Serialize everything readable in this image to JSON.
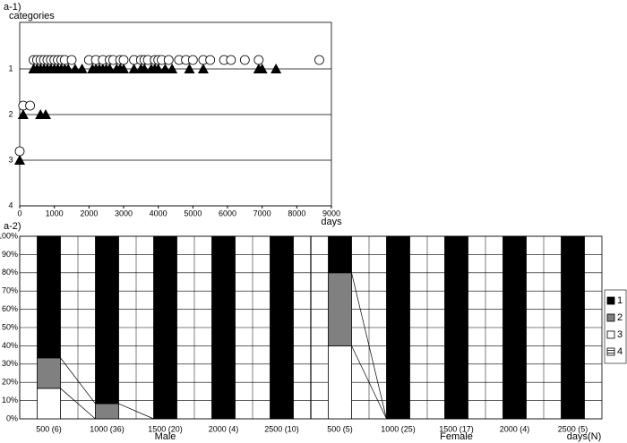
{
  "chart_data": [
    {
      "type": "scatter",
      "label": "a-1)",
      "y_label": "categories",
      "x_label": "days",
      "xlim": [
        0,
        9000
      ],
      "xticks": [
        0,
        1000,
        2000,
        3000,
        4000,
        5000,
        6000,
        7000,
        8000,
        9000
      ],
      "ylim": [
        0,
        4
      ],
      "y_inverted": true,
      "yticks": [
        1,
        2,
        3,
        4
      ],
      "grid": true,
      "series": [
        {
          "marker": "circle",
          "color": "#ffffff",
          "x": [
            400,
            500,
            600,
            700,
            800,
            900,
            1000,
            1100,
            1200,
            1300,
            1500,
            2000,
            2200,
            2400,
            2600,
            2700,
            2900,
            3000,
            3300,
            3500,
            3600,
            3700,
            3900,
            4000,
            4100,
            4300,
            4600,
            4800,
            5000,
            5300,
            5500,
            5900,
            6100,
            6500,
            6900,
            8650,
            100,
            300,
            0
          ],
          "values": [
            1,
            1,
            1,
            1,
            1,
            1,
            1,
            1,
            1,
            1,
            1,
            1,
            1,
            1,
            1,
            1,
            1,
            1,
            1,
            1,
            1,
            1,
            1,
            1,
            1,
            1,
            1,
            1,
            1,
            1,
            1,
            1,
            1,
            1,
            1,
            1,
            2,
            2,
            3
          ]
        },
        {
          "marker": "triangle",
          "color": "#000000",
          "x": [
            400,
            500,
            600,
            700,
            800,
            900,
            1000,
            1100,
            1200,
            1300,
            1400,
            1600,
            1800,
            2100,
            2200,
            2300,
            2400,
            2500,
            2600,
            2800,
            2900,
            3000,
            3300,
            3500,
            3600,
            3800,
            3900,
            4000,
            4200,
            4400,
            4900,
            5300,
            6900,
            7000,
            7400,
            100,
            600,
            750,
            0
          ],
          "values": [
            1,
            1,
            1,
            1,
            1,
            1,
            1,
            1,
            1,
            1,
            1,
            1,
            1,
            1,
            1,
            1,
            1,
            1,
            1,
            1,
            1,
            1,
            1,
            1,
            1,
            1,
            1,
            1,
            1,
            1,
            1,
            1,
            1,
            1,
            1,
            2,
            2,
            2,
            3
          ]
        }
      ]
    },
    {
      "type": "stacked_bar",
      "label": "a-2)",
      "x_label": "days(N)",
      "ylim": [
        0,
        100
      ],
      "yticks": [
        {
          "value": 0,
          "label": "0%"
        },
        {
          "value": 10,
          "label": "10%"
        },
        {
          "value": 20,
          "label": "20%"
        },
        {
          "value": 30,
          "label": "30%"
        },
        {
          "value": 40,
          "label": "40%"
        },
        {
          "value": 50,
          "label": "50%"
        },
        {
          "value": 60,
          "label": "60%"
        },
        {
          "value": 70,
          "label": "70%"
        },
        {
          "value": 80,
          "label": "80%"
        },
        {
          "value": 90,
          "label": "90%"
        },
        {
          "value": 100,
          "label": "100%"
        }
      ],
      "groups": [
        {
          "name": "Male",
          "categories": [
            "500 (6)",
            "1000 (36)",
            "1500 (20)",
            "2000 (4)",
            "2500 (10)"
          ]
        },
        {
          "name": "Female",
          "categories": [
            "500 (5)",
            "1000 (25)",
            "1500 (17)",
            "2000 (4)",
            "2500 (5)"
          ]
        }
      ],
      "series": [
        {
          "name": "1",
          "color": "#000000",
          "values": [
            66.7,
            91.7,
            100,
            100,
            100,
            20,
            100,
            100,
            100,
            100
          ]
        },
        {
          "name": "2",
          "color": "#808080",
          "values": [
            16.7,
            8.3,
            0,
            0,
            0,
            40,
            0,
            0,
            0,
            0
          ]
        },
        {
          "name": "3",
          "color": "#ffffff",
          "values": [
            16.7,
            0,
            0,
            0,
            0,
            40,
            0,
            0,
            0,
            0
          ]
        },
        {
          "name": "4",
          "color": "#ffffff",
          "hatch": true,
          "values": [
            0,
            0,
            0,
            0,
            0,
            0,
            0,
            0,
            0,
            0
          ]
        }
      ]
    }
  ]
}
